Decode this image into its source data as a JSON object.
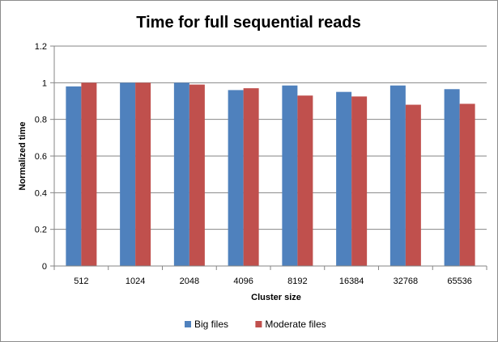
{
  "chart_data": {
    "type": "bar",
    "title": "Time for full sequential reads",
    "xlabel": "Cluster size",
    "ylabel": "Normalized time",
    "categories": [
      "512",
      "1024",
      "2048",
      "4096",
      "8192",
      "16384",
      "32768",
      "65536"
    ],
    "series": [
      {
        "name": "Big files",
        "color": "#4f81bd",
        "values": [
          0.98,
          1.0,
          1.0,
          0.96,
          0.985,
          0.95,
          0.985,
          0.965
        ]
      },
      {
        "name": "Moderate files",
        "color": "#c0504d",
        "values": [
          1.0,
          1.0,
          0.99,
          0.97,
          0.93,
          0.925,
          0.88,
          0.885
        ]
      }
    ],
    "ylim": [
      0,
      1.2
    ],
    "yticks": [
      "0",
      "0.2",
      "0.4",
      "0.6",
      "0.8",
      "1",
      "1.2"
    ],
    "grid": true,
    "legend": "bottom"
  }
}
